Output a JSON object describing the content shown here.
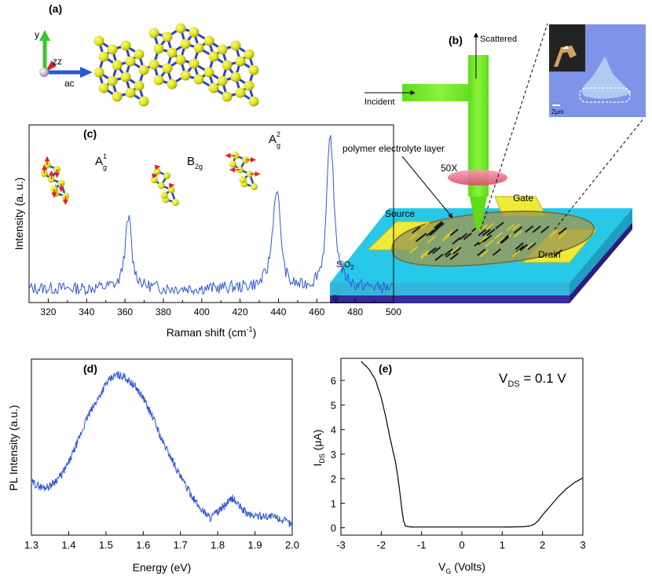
{
  "panel_labels": {
    "a": "(a)",
    "b": "(b)",
    "c": "(c)",
    "d": "(d)",
    "e": "(e)"
  },
  "panel_a": {
    "axis_y": "y",
    "axis_zz": "zz",
    "axis_ac": "ac"
  },
  "panel_b": {
    "scattered": "Scattered",
    "incident": "Incident",
    "layer": "polymer electrolyte layer",
    "objective": "50X",
    "gate": "Gate",
    "source": "Source",
    "drain": "Drain",
    "sio2": "SiO",
    "sio2_sub": "2",
    "si": "Si",
    "scale": "2μm"
  },
  "panel_c": {
    "ylabel": "Intensity (a. u.)",
    "xlabel": "Raman shift (cm",
    "xlabel_sup": "-1",
    "xlabel_end": ")",
    "x_ticks": [
      "320",
      "340",
      "360",
      "380",
      "400",
      "420",
      "440",
      "460",
      "480",
      "500"
    ],
    "peaks": [
      {
        "main": "A",
        "sup": "1",
        "sub": "g"
      },
      {
        "main": "B",
        "sup": "",
        "sub": "2g"
      },
      {
        "main": "A",
        "sup": "2",
        "sub": "g"
      }
    ]
  },
  "panel_e": {
    "vds_main": "V",
    "vds_sub": "DS",
    "vds_val": " = 0.1 V",
    "ylabel_main": "I",
    "ylabel_sub": "DS",
    "ylabel_unit": " (μA)",
    "xlabel_main": "V",
    "xlabel_sub": "G",
    "xlabel_unit": " (Volts)"
  },
  "chart_data": [
    {
      "type": "line",
      "panel": "c",
      "title": "",
      "xlabel": "Raman shift (cm-1)",
      "ylabel": "Intensity (a. u.)",
      "xlim": [
        310,
        500
      ],
      "ylim": [
        0,
        1
      ],
      "x": [
        310,
        320,
        330,
        340,
        350,
        356,
        358,
        360,
        361,
        362,
        363,
        364,
        366,
        370,
        380,
        400,
        420,
        430,
        434,
        436,
        438,
        439,
        440,
        441,
        443,
        446,
        452,
        458,
        462,
        464,
        465,
        466,
        467,
        468,
        469,
        471,
        474,
        480,
        490,
        500
      ],
      "y": [
        0.08,
        0.08,
        0.08,
        0.08,
        0.09,
        0.11,
        0.16,
        0.3,
        0.42,
        0.49,
        0.4,
        0.24,
        0.15,
        0.1,
        0.08,
        0.08,
        0.09,
        0.11,
        0.18,
        0.3,
        0.56,
        0.65,
        0.58,
        0.42,
        0.2,
        0.12,
        0.1,
        0.12,
        0.2,
        0.33,
        0.55,
        0.8,
        0.95,
        0.84,
        0.55,
        0.28,
        0.16,
        0.1,
        0.09,
        0.08
      ]
    },
    {
      "type": "line",
      "panel": "d",
      "title": "",
      "xlabel": "Energy (eV)",
      "ylabel": "PL Intensity (a.u.)",
      "xlim": [
        1.3,
        2.0
      ],
      "ylim": [
        0,
        1
      ],
      "x_ticks": [
        "1.3",
        "1.4",
        "1.5",
        "1.6",
        "1.7",
        "1.8",
        "1.9",
        "2.0"
      ],
      "x": [
        1.3,
        1.33,
        1.35,
        1.38,
        1.4,
        1.43,
        1.45,
        1.48,
        1.5,
        1.52,
        1.53,
        1.55,
        1.58,
        1.6,
        1.63,
        1.65,
        1.68,
        1.7,
        1.72,
        1.75,
        1.78,
        1.8,
        1.82,
        1.84,
        1.86,
        1.88,
        1.9,
        1.93,
        1.96,
        2.0
      ],
      "y": [
        0.3,
        0.27,
        0.28,
        0.34,
        0.41,
        0.56,
        0.67,
        0.78,
        0.86,
        0.9,
        0.91,
        0.9,
        0.84,
        0.78,
        0.65,
        0.54,
        0.42,
        0.33,
        0.26,
        0.16,
        0.1,
        0.13,
        0.17,
        0.21,
        0.16,
        0.12,
        0.11,
        0.11,
        0.1,
        0.06
      ]
    },
    {
      "type": "line",
      "panel": "e",
      "title": "",
      "xlabel": "V_G (Volts)",
      "ylabel": "I_DS (μA)",
      "annotation": "V_DS = 0.1 V",
      "xlim": [
        -3,
        3
      ],
      "ylim": [
        -0.3,
        6.9
      ],
      "x_ticks": [
        "-3",
        "-2",
        "-1",
        "0",
        "1",
        "2",
        "3"
      ],
      "y_ticks": [
        "0",
        "1",
        "2",
        "3",
        "4",
        "5",
        "6"
      ],
      "x": [
        -2.5,
        -2.3,
        -2.15,
        -2.0,
        -1.9,
        -1.8,
        -1.72,
        -1.65,
        -1.6,
        -1.55,
        -1.5,
        -1.45,
        -1.4,
        -1.3,
        -1.2,
        -1.0,
        0.0,
        1.0,
        1.5,
        1.7,
        1.8,
        1.9,
        2.0,
        2.2,
        2.4,
        2.6,
        2.8,
        3.0
      ],
      "y": [
        6.78,
        6.45,
        6.05,
        5.3,
        4.6,
        3.8,
        3.2,
        2.7,
        2.2,
        1.6,
        0.9,
        0.3,
        0.07,
        0.04,
        0.03,
        0.03,
        0.03,
        0.03,
        0.04,
        0.08,
        0.15,
        0.3,
        0.52,
        0.9,
        1.28,
        1.6,
        1.85,
        2.03
      ]
    }
  ]
}
